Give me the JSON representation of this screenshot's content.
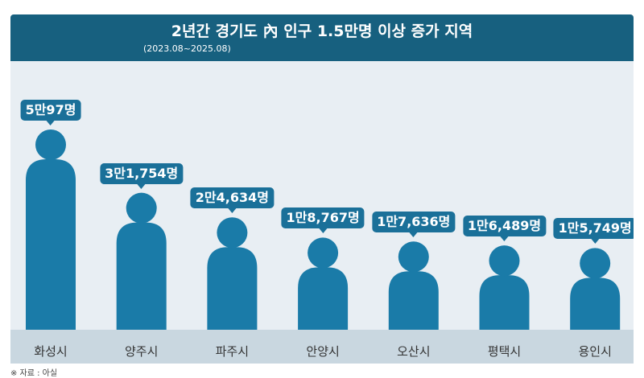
{
  "chart_data": {
    "type": "bar",
    "title": "2년간 경기도 內 인구 1.5만명 이상 증가 지역",
    "subtitle": "(2023.08~2025.08)",
    "categories": [
      "화성시",
      "양주시",
      "파주시",
      "안양시",
      "오산시",
      "평택시",
      "용인시"
    ],
    "values": [
      50097,
      31754,
      24634,
      18767,
      17636,
      16489,
      15749
    ],
    "data_labels": [
      "5만97명",
      "3만1,754명",
      "2만4,634명",
      "1만8,767명",
      "1만7,636명",
      "1만6,489명",
      "1만5,749명"
    ],
    "bar_style": "person-pictogram",
    "colors": {
      "header": "#17607f",
      "bar": "#1a7ba8",
      "label": "#1a7099",
      "background": "#e8eef3",
      "category_band": "#c9d7e0"
    }
  },
  "footnote": "※ 자료 : 아실"
}
